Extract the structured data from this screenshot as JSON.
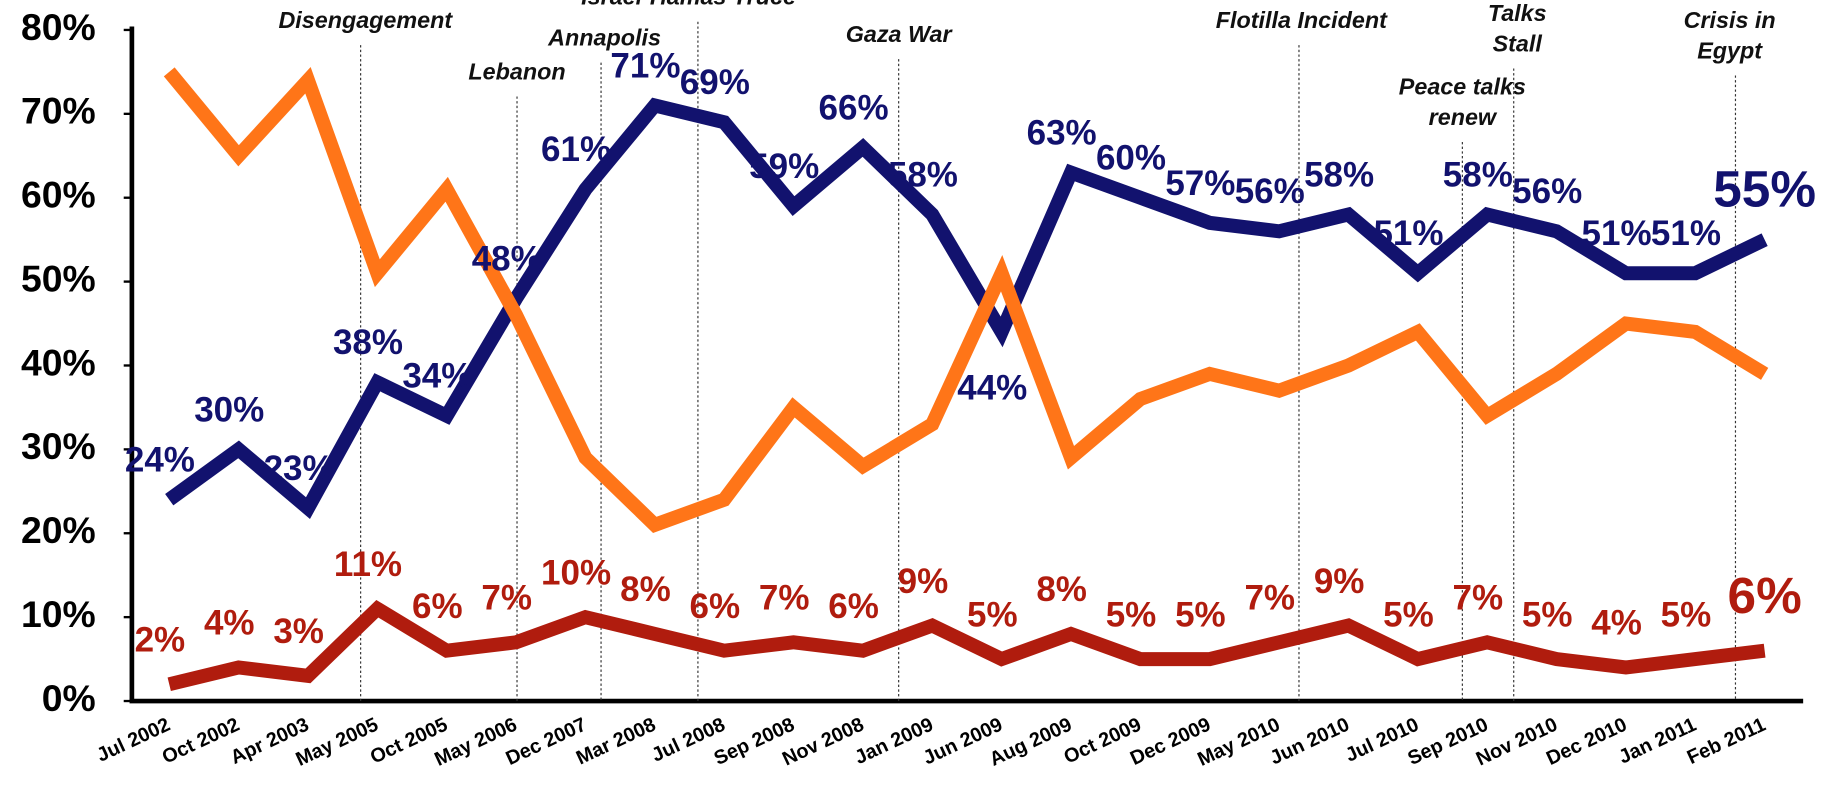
{
  "chart_data": {
    "type": "line",
    "categories": [
      "Jul 2002",
      "Oct 2002",
      "Apr 2003",
      "May 2005",
      "Oct 2005",
      "May 2006",
      "Dec 2007",
      "Mar 2008",
      "Jul 2008",
      "Sep 2008",
      "Nov 2008",
      "Jan 2009",
      "Jun 2009",
      "Aug 2009",
      "Oct 2009",
      "Dec 2009",
      "May 2010",
      "Jun 2010",
      "Jul 2010",
      "Sep 2010",
      "Nov 2010",
      "Dec 2010",
      "Jan 2011",
      "Feb 2011"
    ],
    "series": [
      {
        "color": "#12126e",
        "values": [
          24,
          30,
          23,
          38,
          34,
          48,
          61,
          71,
          69,
          59,
          66,
          58,
          44,
          63,
          60,
          57,
          56,
          58,
          51,
          58,
          56,
          51,
          51,
          55
        ],
        "value_labels": [
          "24%",
          "30%",
          "23%",
          "38%",
          "34%",
          "48%",
          "61%",
          "71%",
          "69%",
          "59%",
          "66%",
          "58%",
          "44%",
          "63%",
          "60%",
          "57%",
          "56%",
          "58%",
          "51%",
          "58%",
          "56%",
          "51%",
          "51%",
          "55%"
        ]
      },
      {
        "color": "#ff7518",
        "values": [
          75,
          65,
          74,
          51,
          61,
          46,
          29,
          21,
          24,
          35,
          28,
          33,
          51,
          29,
          36,
          39,
          37,
          40,
          44,
          34,
          39,
          45,
          44,
          39
        ]
      },
      {
        "color": "#b01c0e",
        "values": [
          2,
          4,
          3,
          11,
          6,
          7,
          10,
          8,
          6,
          7,
          6,
          9,
          5,
          8,
          5,
          5,
          7,
          9,
          5,
          7,
          5,
          4,
          5,
          6
        ],
        "value_labels": [
          "2%",
          "4%",
          "3%",
          "11%",
          "6%",
          "7%",
          "10%",
          "8%",
          "6%",
          "7%",
          "6%",
          "9%",
          "5%",
          "8%",
          "5%",
          "5%",
          "7%",
          "9%",
          "5%",
          "7%",
          "5%",
          "4%",
          "5%",
          "6%"
        ]
      }
    ],
    "annotations": [
      [
        "Disengagement"
      ],
      [
        "Lebanon"
      ],
      [
        "Annapolis"
      ],
      [
        "Israel-Hamas Truce"
      ],
      [
        "Gaza War"
      ],
      [
        "Flotilla Incident"
      ],
      [
        "Peace talks",
        "renew"
      ],
      [
        "Talks",
        "Stall"
      ],
      [
        "Crisis in",
        "Egypt"
      ]
    ],
    "ylim": [
      0,
      80
    ],
    "yticks": [
      {
        "value": 0,
        "label": "0%"
      },
      {
        "value": 10,
        "label": "10%"
      },
      {
        "value": 20,
        "label": "20%"
      },
      {
        "value": 30,
        "label": "30%"
      },
      {
        "value": 40,
        "label": "40%"
      },
      {
        "value": 50,
        "label": "50%"
      },
      {
        "value": 60,
        "label": "60%"
      },
      {
        "value": 70,
        "label": "70%"
      },
      {
        "value": 80,
        "label": "80%"
      }
    ]
  }
}
